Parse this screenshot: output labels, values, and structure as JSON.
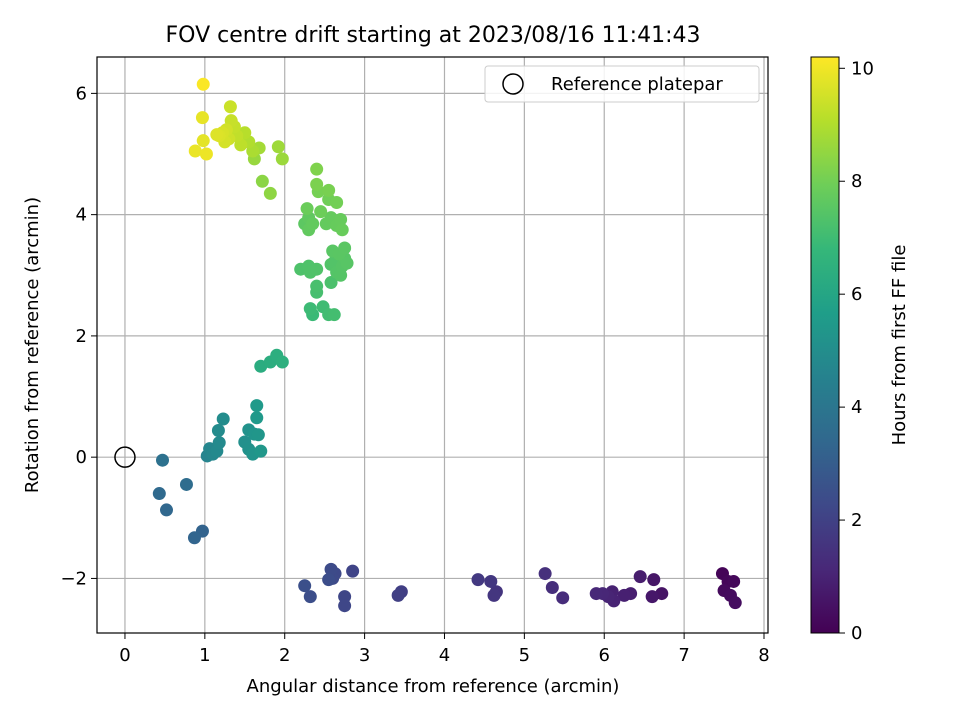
{
  "chart_data": {
    "type": "scatter",
    "title": "FOV centre drift starting at 2023/08/16 11:41:43",
    "xlabel": "Angular distance from reference (arcmin)",
    "ylabel": "Rotation from reference (arcmin)",
    "xlim": [
      -0.35,
      8.05
    ],
    "ylim": [
      -2.9,
      6.6
    ],
    "xticks": [
      0,
      1,
      2,
      3,
      4,
      5,
      6,
      7,
      8
    ],
    "yticks": [
      -2,
      0,
      2,
      4,
      6
    ],
    "ytick_labels": [
      "−2",
      "0",
      "2",
      "4",
      "6"
    ],
    "grid": true,
    "legend": {
      "placement": "top-right",
      "entries": [
        "Reference platepar"
      ]
    },
    "reference_point": {
      "x": 0,
      "y": 0,
      "label": "Reference platepar"
    },
    "colorbar": {
      "label": "Hours from first FF file",
      "min": 0,
      "max": 10.2,
      "ticks": [
        0,
        2,
        4,
        6,
        8,
        10
      ],
      "colormap": "viridis"
    },
    "colormap_stops": [
      "#440154",
      "#482878",
      "#3e4989",
      "#31688e",
      "#26828e",
      "#1f9e89",
      "#35b779",
      "#6ece58",
      "#b5de2b",
      "#fde725"
    ],
    "points": [
      {
        "x": 7.48,
        "y": -1.92,
        "h": 0.1
      },
      {
        "x": 7.55,
        "y": -2.05,
        "h": 0.15
      },
      {
        "x": 7.62,
        "y": -2.05,
        "h": 0.2
      },
      {
        "x": 7.5,
        "y": -2.2,
        "h": 0.25
      },
      {
        "x": 7.58,
        "y": -2.28,
        "h": 0.3
      },
      {
        "x": 7.64,
        "y": -2.4,
        "h": 0.35
      },
      {
        "x": 6.72,
        "y": -2.25,
        "h": 0.55
      },
      {
        "x": 6.62,
        "y": -2.02,
        "h": 0.6
      },
      {
        "x": 6.6,
        "y": -2.3,
        "h": 0.65
      },
      {
        "x": 6.45,
        "y": -1.97,
        "h": 0.8
      },
      {
        "x": 6.33,
        "y": -2.25,
        "h": 0.85
      },
      {
        "x": 6.25,
        "y": -2.28,
        "h": 0.9
      },
      {
        "x": 6.1,
        "y": -2.22,
        "h": 0.95
      },
      {
        "x": 6.12,
        "y": -2.37,
        "h": 1.0
      },
      {
        "x": 6.05,
        "y": -2.3,
        "h": 1.05
      },
      {
        "x": 5.98,
        "y": -2.25,
        "h": 1.1
      },
      {
        "x": 5.9,
        "y": -2.25,
        "h": 1.15
      },
      {
        "x": 5.48,
        "y": -2.32,
        "h": 1.3
      },
      {
        "x": 5.35,
        "y": -2.15,
        "h": 1.35
      },
      {
        "x": 5.26,
        "y": -1.92,
        "h": 1.4
      },
      {
        "x": 4.65,
        "y": -2.22,
        "h": 1.55
      },
      {
        "x": 4.62,
        "y": -2.28,
        "h": 1.6
      },
      {
        "x": 4.58,
        "y": -2.05,
        "h": 1.65
      },
      {
        "x": 4.42,
        "y": -2.02,
        "h": 1.7
      },
      {
        "x": 3.46,
        "y": -2.22,
        "h": 1.9
      },
      {
        "x": 3.42,
        "y": -2.28,
        "h": 1.95
      },
      {
        "x": 2.85,
        "y": -1.88,
        "h": 2.1
      },
      {
        "x": 2.75,
        "y": -2.3,
        "h": 2.15
      },
      {
        "x": 2.75,
        "y": -2.45,
        "h": 2.2
      },
      {
        "x": 2.63,
        "y": -1.92,
        "h": 2.25
      },
      {
        "x": 2.6,
        "y": -2.0,
        "h": 2.3
      },
      {
        "x": 2.58,
        "y": -1.85,
        "h": 2.35
      },
      {
        "x": 2.55,
        "y": -2.02,
        "h": 2.4
      },
      {
        "x": 2.32,
        "y": -2.3,
        "h": 2.45
      },
      {
        "x": 2.25,
        "y": -2.12,
        "h": 2.5
      },
      {
        "x": 0.97,
        "y": -1.22,
        "h": 3.2
      },
      {
        "x": 0.87,
        "y": -1.33,
        "h": 3.3
      },
      {
        "x": 0.52,
        "y": -0.87,
        "h": 3.4
      },
      {
        "x": 0.43,
        "y": -0.6,
        "h": 3.5
      },
      {
        "x": 0.77,
        "y": -0.45,
        "h": 3.6
      },
      {
        "x": 0.47,
        "y": -0.05,
        "h": 3.8
      },
      {
        "x": 1.03,
        "y": 0.02,
        "h": 4.6
      },
      {
        "x": 1.06,
        "y": 0.14,
        "h": 4.7
      },
      {
        "x": 1.1,
        "y": 0.05,
        "h": 4.75
      },
      {
        "x": 1.15,
        "y": 0.1,
        "h": 4.8
      },
      {
        "x": 1.18,
        "y": 0.24,
        "h": 4.85
      },
      {
        "x": 1.17,
        "y": 0.44,
        "h": 4.9
      },
      {
        "x": 1.23,
        "y": 0.63,
        "h": 4.95
      },
      {
        "x": 1.5,
        "y": 0.25,
        "h": 5.1
      },
      {
        "x": 1.55,
        "y": 0.13,
        "h": 5.15
      },
      {
        "x": 1.55,
        "y": 0.45,
        "h": 5.2
      },
      {
        "x": 1.6,
        "y": 0.05,
        "h": 5.25
      },
      {
        "x": 1.62,
        "y": 0.38,
        "h": 5.3
      },
      {
        "x": 1.67,
        "y": 0.37,
        "h": 5.35
      },
      {
        "x": 1.7,
        "y": 0.1,
        "h": 5.4
      },
      {
        "x": 1.65,
        "y": 0.65,
        "h": 5.45
      },
      {
        "x": 1.65,
        "y": 0.85,
        "h": 5.5
      },
      {
        "x": 1.7,
        "y": 1.5,
        "h": 6.3
      },
      {
        "x": 1.82,
        "y": 1.57,
        "h": 6.35
      },
      {
        "x": 1.9,
        "y": 1.68,
        "h": 6.4
      },
      {
        "x": 1.97,
        "y": 1.57,
        "h": 6.45
      },
      {
        "x": 2.35,
        "y": 2.35,
        "h": 6.9
      },
      {
        "x": 2.32,
        "y": 2.45,
        "h": 6.95
      },
      {
        "x": 2.48,
        "y": 2.48,
        "h": 7.0
      },
      {
        "x": 2.55,
        "y": 2.35,
        "h": 7.05
      },
      {
        "x": 2.62,
        "y": 2.35,
        "h": 7.1
      },
      {
        "x": 2.4,
        "y": 2.72,
        "h": 7.15
      },
      {
        "x": 2.4,
        "y": 2.82,
        "h": 7.2
      },
      {
        "x": 2.58,
        "y": 2.88,
        "h": 7.25
      },
      {
        "x": 2.2,
        "y": 3.1,
        "h": 7.3
      },
      {
        "x": 2.3,
        "y": 3.15,
        "h": 7.32
      },
      {
        "x": 2.32,
        "y": 3.05,
        "h": 7.34
      },
      {
        "x": 2.4,
        "y": 3.1,
        "h": 7.36
      },
      {
        "x": 2.58,
        "y": 3.18,
        "h": 7.38
      },
      {
        "x": 2.62,
        "y": 3.22,
        "h": 7.4
      },
      {
        "x": 2.65,
        "y": 3.05,
        "h": 7.42
      },
      {
        "x": 2.7,
        "y": 3.0,
        "h": 7.44
      },
      {
        "x": 2.72,
        "y": 3.15,
        "h": 7.46
      },
      {
        "x": 2.75,
        "y": 3.28,
        "h": 7.48
      },
      {
        "x": 2.78,
        "y": 3.2,
        "h": 7.5
      },
      {
        "x": 2.6,
        "y": 3.4,
        "h": 7.52
      },
      {
        "x": 2.68,
        "y": 3.35,
        "h": 7.54
      },
      {
        "x": 2.75,
        "y": 3.45,
        "h": 7.56
      },
      {
        "x": 2.25,
        "y": 3.85,
        "h": 7.6
      },
      {
        "x": 2.3,
        "y": 3.95,
        "h": 7.65
      },
      {
        "x": 2.3,
        "y": 3.75,
        "h": 7.7
      },
      {
        "x": 2.35,
        "y": 3.85,
        "h": 7.72
      },
      {
        "x": 2.52,
        "y": 3.85,
        "h": 7.74
      },
      {
        "x": 2.58,
        "y": 3.95,
        "h": 7.76
      },
      {
        "x": 2.65,
        "y": 3.82,
        "h": 7.78
      },
      {
        "x": 2.7,
        "y": 3.92,
        "h": 7.8
      },
      {
        "x": 2.72,
        "y": 3.75,
        "h": 7.82
      },
      {
        "x": 2.28,
        "y": 4.1,
        "h": 7.85
      },
      {
        "x": 2.45,
        "y": 4.05,
        "h": 7.9
      },
      {
        "x": 2.55,
        "y": 4.25,
        "h": 7.95
      },
      {
        "x": 2.65,
        "y": 4.2,
        "h": 8.0
      },
      {
        "x": 2.42,
        "y": 4.38,
        "h": 8.05
      },
      {
        "x": 2.55,
        "y": 4.4,
        "h": 8.1
      },
      {
        "x": 2.4,
        "y": 4.5,
        "h": 8.15
      },
      {
        "x": 2.4,
        "y": 4.75,
        "h": 8.2
      },
      {
        "x": 1.72,
        "y": 4.55,
        "h": 8.4
      },
      {
        "x": 1.82,
        "y": 4.35,
        "h": 8.45
      },
      {
        "x": 1.62,
        "y": 4.92,
        "h": 8.6
      },
      {
        "x": 1.97,
        "y": 4.92,
        "h": 8.65
      },
      {
        "x": 1.92,
        "y": 5.12,
        "h": 8.7
      },
      {
        "x": 1.68,
        "y": 5.1,
        "h": 8.8
      },
      {
        "x": 1.6,
        "y": 5.05,
        "h": 8.9
      },
      {
        "x": 1.55,
        "y": 5.2,
        "h": 9.0
      },
      {
        "x": 1.5,
        "y": 5.35,
        "h": 9.1
      },
      {
        "x": 1.45,
        "y": 5.15,
        "h": 9.2
      },
      {
        "x": 1.4,
        "y": 5.3,
        "h": 9.25
      },
      {
        "x": 1.37,
        "y": 5.45,
        "h": 9.3
      },
      {
        "x": 1.33,
        "y": 5.55,
        "h": 9.35
      },
      {
        "x": 1.32,
        "y": 5.78,
        "h": 9.4
      },
      {
        "x": 1.3,
        "y": 5.25,
        "h": 9.45
      },
      {
        "x": 1.27,
        "y": 5.4,
        "h": 9.5
      },
      {
        "x": 1.25,
        "y": 5.2,
        "h": 9.55
      },
      {
        "x": 1.22,
        "y": 5.35,
        "h": 9.6
      },
      {
        "x": 1.18,
        "y": 5.3,
        "h": 9.65
      },
      {
        "x": 1.15,
        "y": 5.32,
        "h": 9.7
      },
      {
        "x": 0.98,
        "y": 5.22,
        "h": 9.8
      },
      {
        "x": 0.97,
        "y": 5.6,
        "h": 9.85
      },
      {
        "x": 0.88,
        "y": 5.05,
        "h": 9.9
      },
      {
        "x": 1.02,
        "y": 5.0,
        "h": 9.95
      },
      {
        "x": 0.98,
        "y": 6.15,
        "h": 10.15
      }
    ]
  }
}
